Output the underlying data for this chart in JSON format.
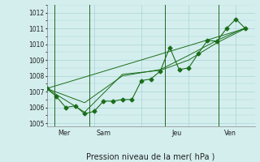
{
  "title": "Pression niveau de la mer( hPa )",
  "bg_color": "#d4eeee",
  "grid_color": "#aad4d4",
  "line_color": "#1a6e1a",
  "vline_color": "#226622",
  "xlim": [
    0,
    22
  ],
  "ylim": [
    1004.8,
    1012.5
  ],
  "yticks": [
    1005,
    1006,
    1007,
    1008,
    1009,
    1010,
    1011,
    1012
  ],
  "day_labels": [
    {
      "label": "Mer",
      "x": 1.2
    },
    {
      "label": "Sam",
      "x": 5.2
    },
    {
      "label": "Jeu",
      "x": 13.2
    },
    {
      "label": "Ven",
      "x": 18.8
    }
  ],
  "day_vlines": [
    0.8,
    4.5,
    12.5,
    18.2
  ],
  "series1": {
    "x": [
      0,
      1,
      2,
      3,
      4,
      5,
      6,
      7,
      8,
      9,
      10,
      11,
      12,
      13,
      14,
      15,
      16,
      17,
      18,
      19,
      20,
      21
    ],
    "y": [
      1007.2,
      1006.7,
      1006.0,
      1006.1,
      1005.6,
      1005.75,
      1006.4,
      1006.4,
      1006.5,
      1006.5,
      1007.7,
      1007.8,
      1008.3,
      1009.8,
      1008.4,
      1008.5,
      1009.4,
      1010.25,
      1010.2,
      1011.0,
      1011.6,
      1011.0
    ],
    "marker": "D",
    "ms": 2.5
  },
  "series2": {
    "x": [
      0,
      4,
      8,
      12,
      15,
      18,
      21
    ],
    "y": [
      1007.2,
      1005.7,
      1008.1,
      1008.35,
      1009.0,
      1010.1,
      1011.0
    ],
    "marker": "None"
  },
  "series3": {
    "x": [
      0,
      4,
      8,
      12,
      15,
      18,
      21
    ],
    "y": [
      1007.2,
      1006.3,
      1008.0,
      1008.4,
      1009.3,
      1010.25,
      1011.05
    ],
    "marker": "None"
  },
  "series4": {
    "x": [
      0,
      21
    ],
    "y": [
      1007.2,
      1011.0
    ],
    "marker": "None"
  }
}
